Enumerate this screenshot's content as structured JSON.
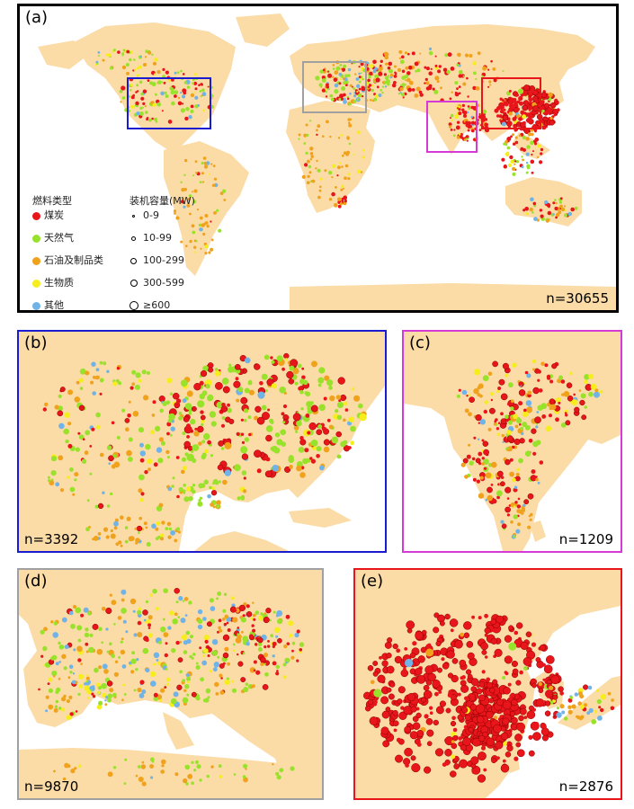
{
  "panels": {
    "a": {
      "label": "(a)",
      "count": "n=30655"
    },
    "b": {
      "label": "(b)",
      "count": "n=3392"
    },
    "c": {
      "label": "(c)",
      "count": "n=1209"
    },
    "d": {
      "label": "(d)",
      "count": "n=9870"
    },
    "e": {
      "label": "(e)",
      "count": "n=2876"
    }
  },
  "legend": {
    "fuel_title": "燃料类型",
    "capacity_title": "装机容量(MW)",
    "fuel_types": [
      {
        "label": "煤炭",
        "color": "#e8151b"
      },
      {
        "label": "天然气",
        "color": "#99e22b"
      },
      {
        "label": "石油及制品类",
        "color": "#f0a21c"
      },
      {
        "label": "生物质",
        "color": "#f5ee1c"
      },
      {
        "label": "其他",
        "color": "#6fb3e8"
      }
    ],
    "capacity_classes": [
      "0-9",
      "10-99",
      "100-299",
      "300-599",
      "≥600"
    ]
  },
  "colors": {
    "land": "#fbdba6",
    "ocean": "#ffffff",
    "box_north_america": "#1b1bd0",
    "box_india": "#d63ad6",
    "box_europe": "#a0a0a0",
    "box_east_asia": "#e8151b"
  }
}
